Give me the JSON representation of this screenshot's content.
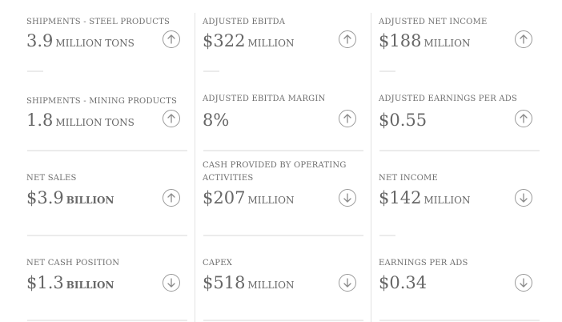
{
  "metrics": [
    {
      "label": "SHIPMENTS - STEEL PRODUCTS",
      "value": "3.9",
      "unit": "MILLION TONS",
      "trend": "up"
    },
    {
      "label": "ADJUSTED EBITDA",
      "value": "$322",
      "unit": "MILLION",
      "trend": "up"
    },
    {
      "label": "ADJUSTED NET INCOME",
      "value": "$188",
      "unit": "MILLION",
      "trend": "up"
    },
    {
      "label": "SHIPMENTS - MINING PRODUCTS",
      "value": "1.8",
      "unit": "MILLION TONS",
      "trend": "up"
    },
    {
      "label": "ADJUSTED EBITDA MARGIN",
      "value": "8%",
      "unit": "",
      "trend": "up"
    },
    {
      "label": "ADJUSTED EARNINGS PER ADS",
      "value": "$0.55",
      "unit": "",
      "trend": "up"
    },
    {
      "label": "NET SALES",
      "value": "$3.9",
      "unit": "BILLION",
      "trend": "up"
    },
    {
      "label": "CASH PROVIDED BY OPERATING ACTIVITIES",
      "value": "$207",
      "unit": "MILLION",
      "trend": "down"
    },
    {
      "label": "NET INCOME",
      "value": "$142",
      "unit": "MILLION",
      "trend": "down"
    },
    {
      "label": "NET CASH POSITION",
      "value": "$1.3",
      "unit": "BILLION",
      "trend": "down"
    },
    {
      "label": "CAPEX",
      "value": "$518",
      "unit": "MILLION",
      "trend": "down"
    },
    {
      "label": "EARNINGS PER ADS",
      "value": "$0.34",
      "unit": "",
      "trend": "down"
    }
  ],
  "colors": {
    "text": "#666666",
    "divider": "#e2e2e2",
    "icon_border": "#9a9a9a"
  }
}
